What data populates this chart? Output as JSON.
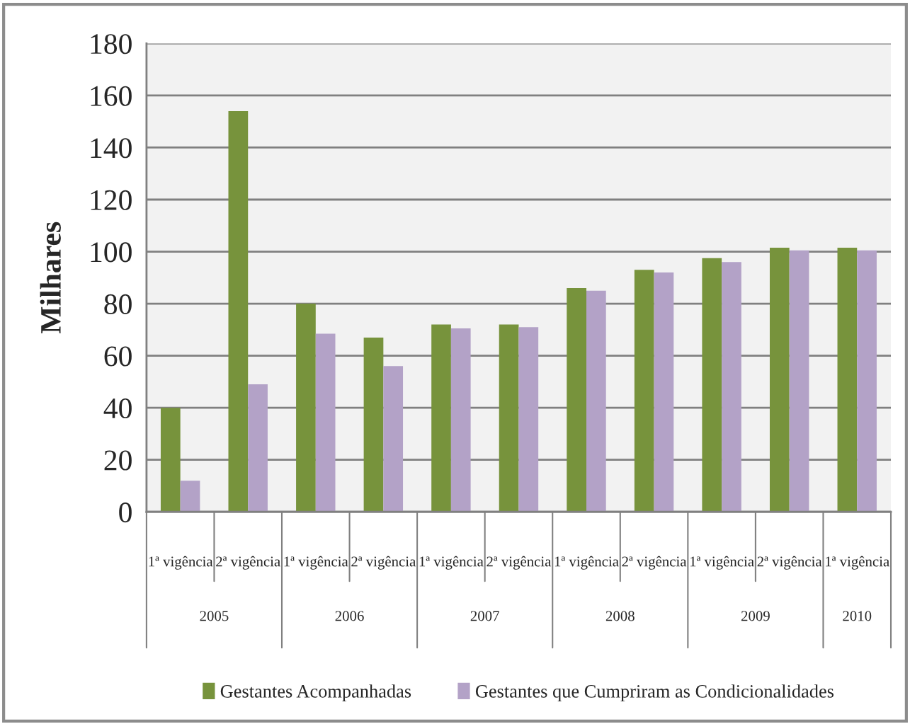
{
  "chart_data": {
    "type": "bar",
    "ylabel": "Milhares",
    "categories": [
      "1ª vigência",
      "2ª vigência",
      "1ª vigência",
      "2ª vigência",
      "1ª vigência",
      "2ª vigência",
      "1ª vigência",
      "2ª vigência",
      "1ª vigência",
      "2ª vigência",
      "1ª vigência"
    ],
    "annotations": [
      "2005",
      "2006",
      "2007",
      "2008",
      "2009",
      "2010"
    ],
    "series": [
      {
        "name": "Gestantes Acompanhadas",
        "color": "#77933c",
        "values": [
          40,
          154,
          80,
          67,
          72,
          72,
          86,
          93,
          97.5,
          101.5,
          101.5
        ]
      },
      {
        "name": "Gestantes que Cumpriram as Condicionalidades",
        "color": "#b3a2c7",
        "values": [
          12,
          49,
          68.5,
          56,
          70.5,
          71,
          85,
          92,
          96,
          100.5,
          100.5
        ]
      }
    ],
    "ylim": [
      0,
      180
    ],
    "yticks": [
      0,
      20,
      40,
      60,
      80,
      100,
      120,
      140,
      160,
      180
    ],
    "grid": "y",
    "legend": "bottom"
  }
}
